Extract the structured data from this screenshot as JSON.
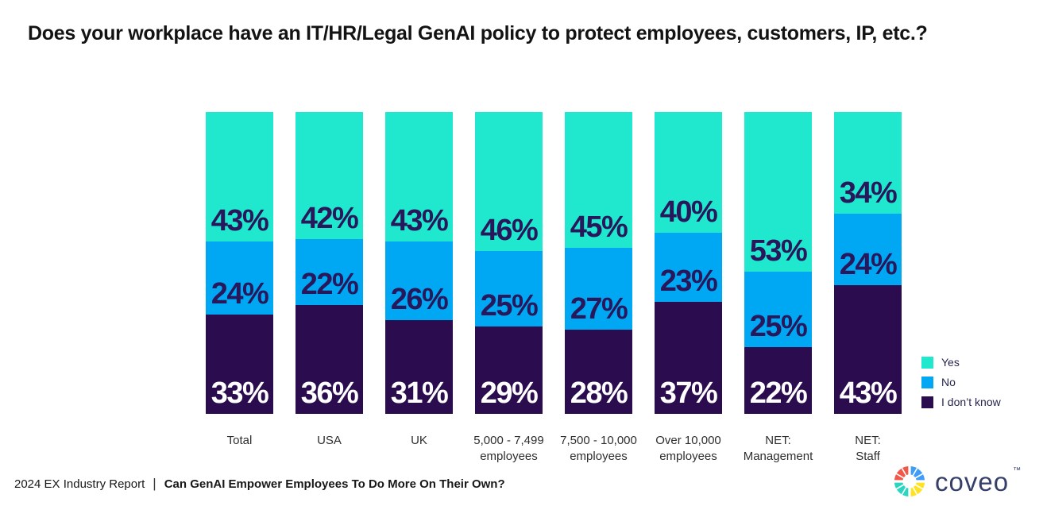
{
  "title": "Does your workplace have an IT/HR/Legal GenAI policy to protect employees, customers, IP, etc.?",
  "chart_data": {
    "type": "bar",
    "stacked": true,
    "orientation": "vertical",
    "value_suffix": "%",
    "ylim": [
      0,
      100
    ],
    "grid": false,
    "legend_position": "right",
    "categories": [
      "Total",
      "USA",
      "UK",
      "5,000 - 7,499\nemployees",
      "7,500 - 10,000\nemployees",
      "Over 10,000\nemployees",
      "NET:\nManagement",
      "NET:\nStaff"
    ],
    "series": [
      {
        "name": "Yes",
        "color": "#1fe8ce",
        "label_color": "#29175c",
        "values": [
          43,
          42,
          43,
          46,
          45,
          40,
          53,
          34
        ]
      },
      {
        "name": "No",
        "color": "#00a8f4",
        "label_color": "#29175c",
        "values": [
          24,
          22,
          26,
          25,
          27,
          23,
          25,
          24
        ]
      },
      {
        "name": "I don’t know",
        "color": "#2a0c4f",
        "label_color": "#ffffff",
        "values": [
          33,
          36,
          31,
          29,
          28,
          37,
          22,
          43
        ]
      }
    ]
  },
  "footer": {
    "report": "2024 EX Industry Report",
    "separator": "|",
    "headline": "Can GenAI Empower Employees To Do More On Their Own?"
  },
  "logo": {
    "text": "coveo",
    "trademark": "™",
    "icon_colors": {
      "red": "#f2574a",
      "blue": "#3f9df8",
      "yellow": "#ffe323",
      "teal": "#2bd6c1"
    }
  }
}
